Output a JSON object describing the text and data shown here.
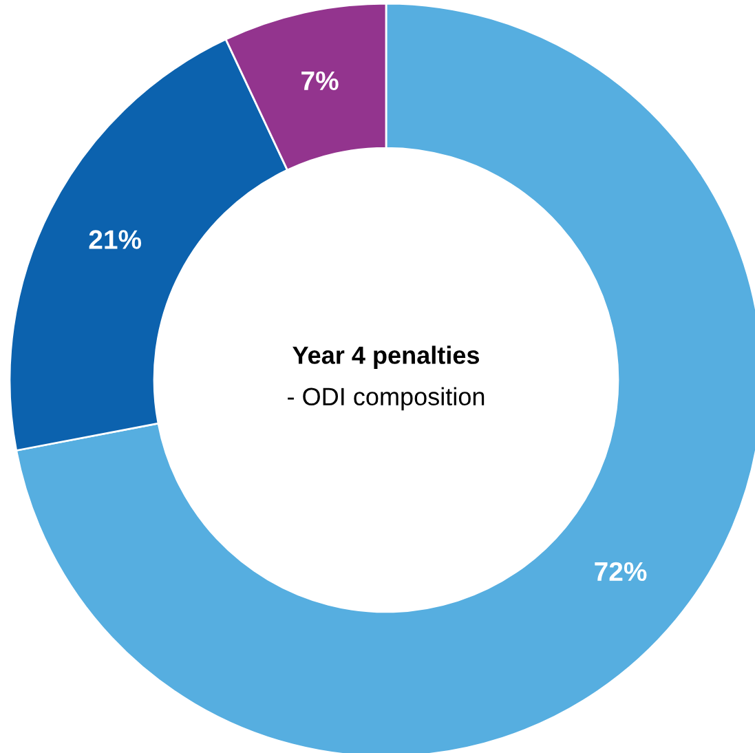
{
  "chart_data": {
    "type": "donut",
    "title": "Year 4 penalties",
    "subtitle": "- ODI composition",
    "categories": [
      null,
      null,
      null
    ],
    "values": [
      72,
      21,
      7
    ],
    "colors": [
      "#56aee0",
      "#0c62ae",
      "#93348e"
    ],
    "value_labels": [
      "72%",
      "21%",
      "7%"
    ],
    "legend": false
  }
}
